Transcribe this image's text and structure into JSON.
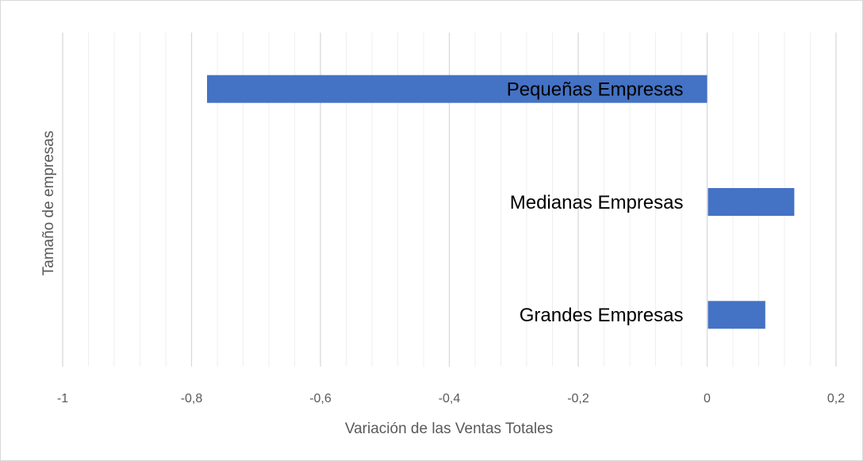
{
  "chart_data": {
    "type": "bar",
    "orientation": "horizontal",
    "x_label": "Variación de las Ventas Totales",
    "y_label": "Tamaño de empresas",
    "categories": [
      "Pequeñas Empresas",
      "Medianas Empresas",
      "Grandes Empresas"
    ],
    "values": [
      -0.776,
      0.134,
      0.089
    ],
    "color": "#4472c4",
    "xlim": [
      -1,
      0.2
    ],
    "xticks": [
      -1,
      {
        "value": -0.8,
        "label": "-0,8"
      },
      {
        "value": -0.6,
        "label": "-0,6"
      },
      {
        "value": -0.4,
        "label": "-0,4"
      },
      {
        "value": -0.2,
        "label": "-0,2"
      },
      0,
      {
        "value": 0.2,
        "label": "0,2"
      }
    ],
    "grid": true
  }
}
